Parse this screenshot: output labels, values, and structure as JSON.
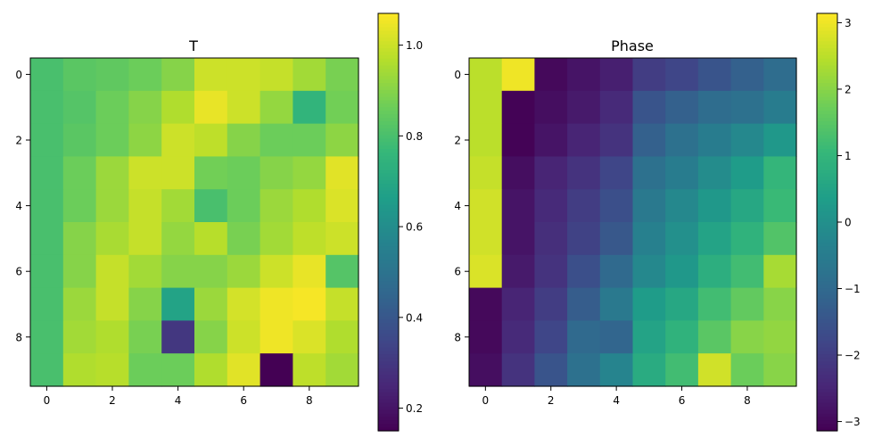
{
  "chart_data": [
    {
      "type": "heatmap",
      "title": "T",
      "xlabel": "",
      "ylabel": "",
      "x_ticks": [
        0,
        2,
        4,
        6,
        8
      ],
      "y_ticks": [
        0,
        2,
        4,
        6,
        8
      ],
      "colormap": "viridis",
      "vmin": 0.15,
      "vmax": 1.07,
      "colorbar_ticks": [
        0.2,
        0.4,
        0.6,
        0.8,
        1.0
      ],
      "colorbar_tick_labels": [
        "0.2",
        "0.4",
        "0.6",
        "0.8",
        "1.0"
      ],
      "values": [
        [
          0.8,
          0.83,
          0.84,
          0.86,
          0.9,
          1.0,
          1.0,
          0.99,
          0.94,
          0.88
        ],
        [
          0.8,
          0.82,
          0.86,
          0.9,
          0.96,
          1.04,
          1.0,
          0.92,
          0.75,
          0.87
        ],
        [
          0.8,
          0.83,
          0.86,
          0.91,
          1.0,
          0.98,
          0.9,
          0.86,
          0.86,
          0.91
        ],
        [
          0.8,
          0.86,
          0.93,
          1.0,
          1.0,
          0.87,
          0.86,
          0.9,
          0.92,
          1.03
        ],
        [
          0.8,
          0.86,
          0.93,
          0.99,
          0.94,
          0.8,
          0.86,
          0.93,
          0.96,
          1.02
        ],
        [
          0.8,
          0.9,
          0.95,
          0.99,
          0.92,
          0.97,
          0.88,
          0.94,
          0.98,
          1.0
        ],
        [
          0.8,
          0.9,
          0.99,
          0.94,
          0.9,
          0.9,
          0.93,
          1.0,
          1.04,
          0.82
        ],
        [
          0.8,
          0.93,
          0.99,
          0.9,
          0.68,
          0.93,
          1.01,
          1.05,
          1.06,
          0.99
        ],
        [
          0.8,
          0.94,
          0.96,
          0.88,
          0.3,
          0.9,
          1.0,
          1.05,
          1.02,
          0.96
        ],
        [
          0.8,
          0.96,
          0.97,
          0.86,
          0.86,
          0.96,
          1.03,
          0.15,
          0.98,
          0.94
        ]
      ]
    },
    {
      "type": "heatmap",
      "title": "Phase",
      "xlabel": "",
      "ylabel": "",
      "x_ticks": [
        0,
        2,
        4,
        6,
        8
      ],
      "y_ticks": [
        0,
        2,
        4,
        6,
        8
      ],
      "colormap": "viridis",
      "vmin": -3.14,
      "vmax": 3.14,
      "colorbar_ticks": [
        -3,
        -2,
        -1,
        0,
        1,
        2,
        3
      ],
      "colorbar_tick_labels": [
        "−3",
        "−2",
        "−1",
        "0",
        "1",
        "2",
        "3"
      ],
      "values": [
        [
          2.5,
          3.0,
          -3.0,
          -2.8,
          -2.6,
          -2.0,
          -1.8,
          -1.5,
          -1.2,
          -0.9
        ],
        [
          2.5,
          -3.1,
          -2.9,
          -2.7,
          -2.4,
          -1.5,
          -1.2,
          -0.9,
          -0.8,
          -0.5
        ],
        [
          2.5,
          -3.1,
          -2.8,
          -2.5,
          -2.2,
          -1.2,
          -0.8,
          -0.5,
          -0.2,
          0.2
        ],
        [
          2.6,
          -2.9,
          -2.5,
          -2.2,
          -1.8,
          -0.8,
          -0.5,
          -0.1,
          0.3,
          1.0
        ],
        [
          2.7,
          -2.8,
          -2.4,
          -2.0,
          -1.6,
          -0.6,
          -0.2,
          0.2,
          0.6,
          1.1
        ],
        [
          2.7,
          -2.8,
          -2.3,
          -1.9,
          -1.4,
          -0.4,
          0.0,
          0.5,
          0.9,
          1.4
        ],
        [
          2.8,
          -2.7,
          -2.2,
          -1.6,
          -1.0,
          -0.2,
          0.2,
          0.8,
          1.2,
          2.3
        ],
        [
          -3.0,
          -2.5,
          -2.0,
          -1.3,
          -0.6,
          0.3,
          0.6,
          1.2,
          1.6,
          2.0
        ],
        [
          -3.0,
          -2.4,
          -1.8,
          -1.0,
          -1.1,
          0.5,
          0.9,
          1.5,
          2.0,
          2.1
        ],
        [
          -2.9,
          -2.2,
          -1.5,
          -0.8,
          -0.3,
          0.7,
          1.2,
          2.7,
          1.7,
          2.0
        ]
      ]
    }
  ]
}
